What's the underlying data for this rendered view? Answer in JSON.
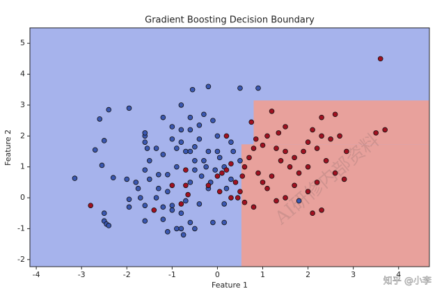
{
  "chart_data": {
    "type": "scatter",
    "title": "Gradient Boosting Decision Boundary",
    "x_label": "Feature 1",
    "y_label": "Feature 2",
    "xlim": [
      -4.14,
      4.68
    ],
    "ylim": [
      -2.23,
      5.5
    ],
    "xticks": [
      -4,
      -3,
      -2,
      -1,
      0,
      1,
      2,
      3,
      4
    ],
    "yticks": [
      -2,
      -1,
      0,
      1,
      2,
      3,
      4,
      5
    ],
    "background_color": "#a6b3ec",
    "regions": [
      {
        "color": "#e8a19c",
        "x": [
          0.53,
          4.68
        ],
        "y": [
          -2.23,
          1.73
        ]
      },
      {
        "color": "#e8a19c",
        "x": [
          0.8,
          4.68
        ],
        "y": [
          1.73,
          3.15
        ]
      }
    ],
    "series": [
      {
        "color": "#3a57b0",
        "x": [
          -3.15,
          -2.6,
          -2.4,
          -2.7,
          -2.5,
          -2.55,
          -2.3,
          -2.5,
          -2.5,
          -2.45,
          -2.4,
          -2.0,
          -1.95,
          -1.6,
          -1.6,
          -1.6,
          -1.55,
          -1.6,
          -1.5,
          -1.8,
          -1.75,
          -1.7,
          -1.5,
          -1.3,
          -1.6,
          -1.95,
          -1.95,
          -1.6,
          -1.35,
          -1.3,
          -1.2,
          -1.0,
          -1.35,
          -1.2,
          -1.1,
          -1.2,
          -1.2,
          -1.0,
          -1.1,
          -0.9,
          -0.8,
          -0.8,
          -0.75,
          -0.7,
          -0.6,
          -0.5,
          -0.3,
          -0.35,
          -0.2,
          -0.7,
          -0.9,
          -1.0,
          -0.8,
          -0.6,
          -0.5,
          -0.9,
          -0.8,
          -0.6,
          -0.5,
          -0.6,
          -0.8,
          -0.55,
          -0.4,
          -0.3,
          -0.4,
          -0.1,
          0.0,
          -0.2,
          -0.25,
          -0.15,
          -0.05,
          0.15,
          0.05,
          0.0,
          -0.2,
          0.5,
          0.9,
          0.3,
          0.35,
          0.5,
          0.3,
          0.2,
          0.15,
          -0.1,
          0.15,
          -0.6,
          -0.4,
          -0.5,
          -1.0,
          1.8,
          -1.1
        ],
        "values": [
          0.63,
          2.55,
          2.85,
          1.55,
          1.85,
          1.05,
          0.65,
          -0.5,
          -0.75,
          -0.85,
          -0.9,
          0.6,
          2.9,
          2.0,
          2.1,
          1.8,
          1.6,
          0.9,
          1.2,
          0.5,
          0.3,
          0.0,
          0.6,
          0.75,
          -0.25,
          -0.3,
          -0.05,
          -0.75,
          0.0,
          0.3,
          2.6,
          2.3,
          1.6,
          1.4,
          0.75,
          -0.3,
          -0.7,
          -0.4,
          -1.1,
          -1.0,
          -0.5,
          -1.0,
          -1.2,
          -0.1,
          0.5,
          0.9,
          1.2,
          0.7,
          0.3,
          1.5,
          1.6,
          1.9,
          1.8,
          1.5,
          1.2,
          1.0,
          3.0,
          2.6,
          1.65,
          2.2,
          2.2,
          3.5,
          1.9,
          2.7,
          2.35,
          2.5,
          2.0,
          1.5,
          1.0,
          0.5,
          0.9,
          1.0,
          1.3,
          1.5,
          3.6,
          3.55,
          3.55,
          1.8,
          1.5,
          1.2,
          0.6,
          0.3,
          -0.2,
          -0.8,
          -0.8,
          -0.8,
          -0.2,
          -1.0,
          -0.25,
          -0.1,
          0.2
        ]
      },
      {
        "color": "#a01020",
        "x": [
          -2.8,
          -1.4,
          -1.0,
          -0.7,
          -0.7,
          -0.65,
          -0.2,
          0.0,
          0.1,
          0.2,
          0.3,
          0.05,
          0.45,
          0.5,
          0.4,
          0.55,
          0.6,
          0.7,
          0.8,
          0.75,
          0.85,
          1.0,
          1.1,
          1.2,
          1.3,
          1.35,
          1.5,
          1.4,
          1.5,
          1.6,
          1.7,
          1.8,
          1.9,
          2.0,
          2.0,
          2.1,
          2.2,
          2.3,
          2.3,
          2.4,
          2.5,
          2.6,
          2.7,
          2.8,
          2.6,
          2.2,
          2.0,
          1.7,
          1.5,
          1.3,
          2.1,
          2.3,
          0.8,
          0.6,
          1.0,
          1.1,
          0.9,
          1.2,
          3.5,
          3.6,
          3.7,
          2.85,
          0.2,
          0.3,
          -0.8
        ],
        "values": [
          -0.25,
          -0.4,
          0.4,
          0.4,
          0.9,
          0.1,
          0.4,
          0.7,
          0.8,
          0.9,
          1.1,
          0.2,
          0.0,
          0.2,
          0.5,
          0.7,
          1.0,
          1.3,
          1.6,
          2.45,
          1.9,
          1.7,
          2.0,
          2.8,
          1.6,
          2.1,
          2.3,
          1.2,
          1.5,
          1.0,
          1.3,
          0.8,
          1.5,
          1.0,
          1.8,
          2.2,
          1.6,
          2.6,
          2.0,
          1.2,
          1.9,
          2.7,
          2.0,
          0.6,
          0.8,
          0.5,
          0.2,
          0.4,
          0.0,
          -0.1,
          -0.5,
          -0.4,
          -0.3,
          -0.15,
          0.5,
          0.3,
          0.8,
          0.7,
          2.1,
          4.5,
          2.2,
          1.5,
          2.0,
          0.0,
          -0.2
        ]
      }
    ]
  },
  "watermark": "AI研修内部资料",
  "credit": "知乎 @小李"
}
